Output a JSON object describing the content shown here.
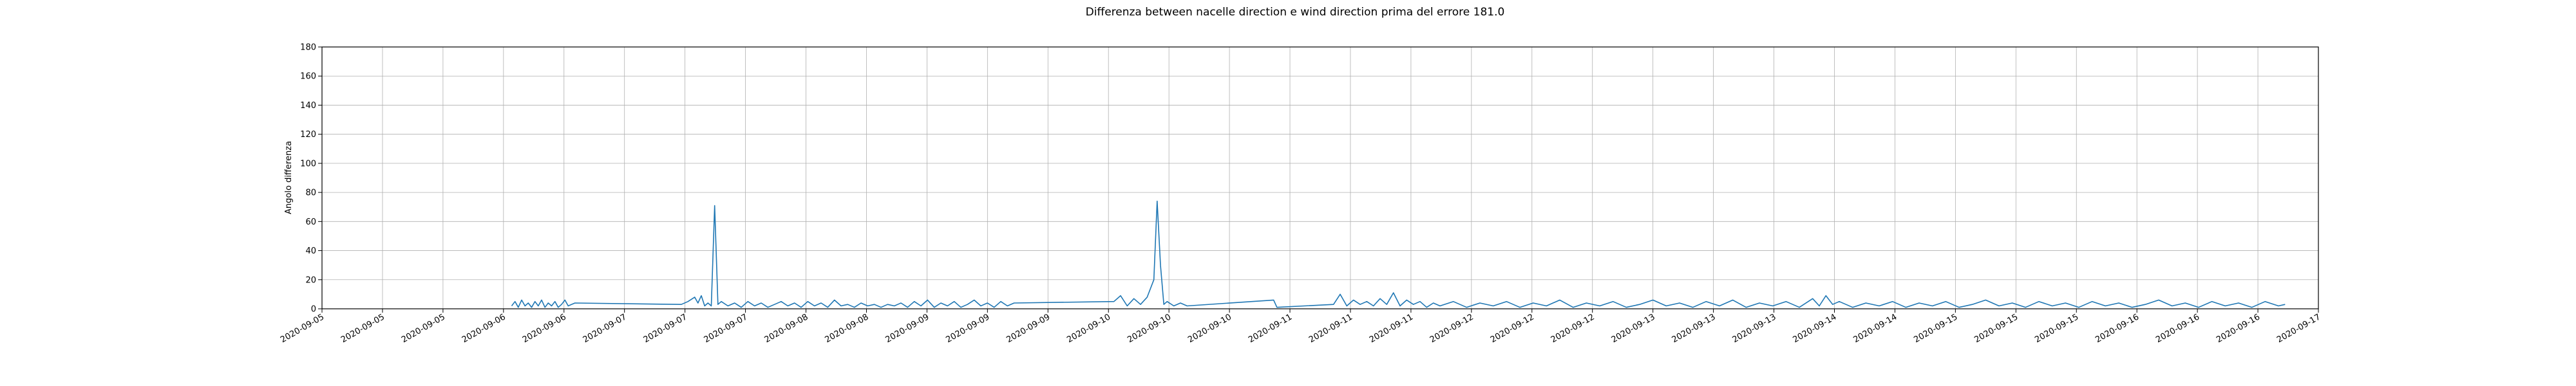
{
  "chart_data": {
    "type": "line",
    "title": "Differenza between nacelle direction e wind direction prima del errore 181.0",
    "xlabel": "",
    "ylabel": "Angolo differenza",
    "ylim": [
      0,
      180
    ],
    "yticks": [
      0,
      20,
      40,
      60,
      80,
      100,
      120,
      140,
      160,
      180
    ],
    "xlim": [
      "2020-09-05 00:00",
      "2020-09-17 12:00"
    ],
    "xtick_labels": [
      "2020-09-05",
      "2020-09-05",
      "2020-09-05",
      "2020-09-06",
      "2020-09-06",
      "2020-09-07",
      "2020-09-07",
      "2020-09-07",
      "2020-09-08",
      "2020-09-08",
      "2020-09-09",
      "2020-09-09",
      "2020-09-09",
      "2020-09-10",
      "2020-09-10",
      "2020-09-10",
      "2020-09-11",
      "2020-09-11",
      "2020-09-11",
      "2020-09-12",
      "2020-09-12",
      "2020-09-12",
      "2020-09-13",
      "2020-09-13",
      "2020-09-13",
      "2020-09-14",
      "2020-09-14",
      "2020-09-15",
      "2020-09-15",
      "2020-09-15",
      "2020-09-16",
      "2020-09-16",
      "2020-09-16",
      "2020-09-17"
    ],
    "grid": true,
    "line_color": "#1f77b4",
    "series": [
      {
        "points": [
          [
            "2020-09-06 04:30",
            2
          ],
          [
            "2020-09-06 05:00",
            5
          ],
          [
            "2020-09-06 05:30",
            1
          ],
          [
            "2020-09-06 06:00",
            6
          ],
          [
            "2020-09-06 06:30",
            2
          ],
          [
            "2020-09-06 07:00",
            4
          ],
          [
            "2020-09-06 07:30",
            1
          ],
          [
            "2020-09-06 08:00",
            5
          ],
          [
            "2020-09-06 08:30",
            2
          ],
          [
            "2020-09-06 09:00",
            6
          ],
          [
            "2020-09-06 09:30",
            1
          ],
          [
            "2020-09-06 10:00",
            4
          ],
          [
            "2020-09-06 10:30",
            2
          ],
          [
            "2020-09-06 11:00",
            5
          ],
          [
            "2020-09-06 11:30",
            1
          ],
          [
            "2020-09-06 12:00",
            3
          ],
          [
            "2020-09-06 12:30",
            6
          ],
          [
            "2020-09-06 13:00",
            2
          ],
          [
            "2020-09-06 14:00",
            4
          ],
          [
            "2020-09-07 06:00",
            3
          ],
          [
            "2020-09-07 07:00",
            5
          ],
          [
            "2020-09-07 08:00",
            8
          ],
          [
            "2020-09-07 08:30",
            4
          ],
          [
            "2020-09-07 09:00",
            9
          ],
          [
            "2020-09-07 09:30",
            2
          ],
          [
            "2020-09-07 10:00",
            4
          ],
          [
            "2020-09-07 10:30",
            2
          ],
          [
            "2020-09-07 11:00",
            71
          ],
          [
            "2020-09-07 11:30",
            3
          ],
          [
            "2020-09-07 12:00",
            5
          ],
          [
            "2020-09-07 13:00",
            2
          ],
          [
            "2020-09-07 14:00",
            4
          ],
          [
            "2020-09-07 15:00",
            1
          ],
          [
            "2020-09-07 16:00",
            5
          ],
          [
            "2020-09-07 17:00",
            2
          ],
          [
            "2020-09-07 18:00",
            4
          ],
          [
            "2020-09-07 19:00",
            1
          ],
          [
            "2020-09-07 20:00",
            3
          ],
          [
            "2020-09-07 21:00",
            5
          ],
          [
            "2020-09-07 22:00",
            2
          ],
          [
            "2020-09-07 23:00",
            4
          ],
          [
            "2020-09-08 00:00",
            1
          ],
          [
            "2020-09-08 01:00",
            5
          ],
          [
            "2020-09-08 02:00",
            2
          ],
          [
            "2020-09-08 03:00",
            4
          ],
          [
            "2020-09-08 04:00",
            1
          ],
          [
            "2020-09-08 05:00",
            6
          ],
          [
            "2020-09-08 06:00",
            2
          ],
          [
            "2020-09-08 07:00",
            3
          ],
          [
            "2020-09-08 08:00",
            1
          ],
          [
            "2020-09-08 09:00",
            4
          ],
          [
            "2020-09-08 10:00",
            2
          ],
          [
            "2020-09-08 11:00",
            3
          ],
          [
            "2020-09-08 12:00",
            1
          ],
          [
            "2020-09-08 13:00",
            3
          ],
          [
            "2020-09-08 14:00",
            2
          ],
          [
            "2020-09-08 15:00",
            4
          ],
          [
            "2020-09-08 16:00",
            1
          ],
          [
            "2020-09-08 17:00",
            5
          ],
          [
            "2020-09-08 18:00",
            2
          ],
          [
            "2020-09-08 19:00",
            6
          ],
          [
            "2020-09-08 20:00",
            1
          ],
          [
            "2020-09-08 21:00",
            4
          ],
          [
            "2020-09-08 22:00",
            2
          ],
          [
            "2020-09-08 23:00",
            5
          ],
          [
            "2020-09-09 00:00",
            1
          ],
          [
            "2020-09-09 01:00",
            3
          ],
          [
            "2020-09-09 02:00",
            6
          ],
          [
            "2020-09-09 03:00",
            2
          ],
          [
            "2020-09-09 04:00",
            4
          ],
          [
            "2020-09-09 05:00",
            1
          ],
          [
            "2020-09-09 06:00",
            5
          ],
          [
            "2020-09-09 07:00",
            2
          ],
          [
            "2020-09-09 08:00",
            4
          ],
          [
            "2020-09-09 23:00",
            5
          ],
          [
            "2020-09-10 00:00",
            9
          ],
          [
            "2020-09-10 01:00",
            2
          ],
          [
            "2020-09-10 02:00",
            7
          ],
          [
            "2020-09-10 03:00",
            3
          ],
          [
            "2020-09-10 04:00",
            8
          ],
          [
            "2020-09-10 05:00",
            20
          ],
          [
            "2020-09-10 05:30",
            74
          ],
          [
            "2020-09-10 06:00",
            30
          ],
          [
            "2020-09-10 06:30",
            3
          ],
          [
            "2020-09-10 07:00",
            5
          ],
          [
            "2020-09-10 08:00",
            2
          ],
          [
            "2020-09-10 09:00",
            4
          ],
          [
            "2020-09-10 10:00",
            2
          ],
          [
            "2020-09-10 23:00",
            6
          ],
          [
            "2020-09-10 23:30",
            1
          ],
          [
            "2020-09-11 08:00",
            3
          ],
          [
            "2020-09-11 09:00",
            10
          ],
          [
            "2020-09-11 10:00",
            2
          ],
          [
            "2020-09-11 11:00",
            6
          ],
          [
            "2020-09-11 12:00",
            3
          ],
          [
            "2020-09-11 13:00",
            5
          ],
          [
            "2020-09-11 14:00",
            2
          ],
          [
            "2020-09-11 15:00",
            7
          ],
          [
            "2020-09-11 16:00",
            3
          ],
          [
            "2020-09-11 17:00",
            11
          ],
          [
            "2020-09-11 18:00",
            2
          ],
          [
            "2020-09-11 19:00",
            6
          ],
          [
            "2020-09-11 20:00",
            3
          ],
          [
            "2020-09-11 21:00",
            5
          ],
          [
            "2020-09-11 22:00",
            1
          ],
          [
            "2020-09-11 23:00",
            4
          ],
          [
            "2020-09-12 00:00",
            2
          ],
          [
            "2020-09-12 02:00",
            5
          ],
          [
            "2020-09-12 04:00",
            1
          ],
          [
            "2020-09-12 06:00",
            4
          ],
          [
            "2020-09-12 08:00",
            2
          ],
          [
            "2020-09-12 10:00",
            5
          ],
          [
            "2020-09-12 12:00",
            1
          ],
          [
            "2020-09-12 14:00",
            4
          ],
          [
            "2020-09-12 16:00",
            2
          ],
          [
            "2020-09-12 18:00",
            6
          ],
          [
            "2020-09-12 20:00",
            1
          ],
          [
            "2020-09-12 22:00",
            4
          ],
          [
            "2020-09-13 00:00",
            2
          ],
          [
            "2020-09-13 02:00",
            5
          ],
          [
            "2020-09-13 04:00",
            1
          ],
          [
            "2020-09-13 06:00",
            3
          ],
          [
            "2020-09-13 08:00",
            6
          ],
          [
            "2020-09-13 10:00",
            2
          ],
          [
            "2020-09-13 12:00",
            4
          ],
          [
            "2020-09-13 14:00",
            1
          ],
          [
            "2020-09-13 16:00",
            5
          ],
          [
            "2020-09-13 18:00",
            2
          ],
          [
            "2020-09-13 20:00",
            6
          ],
          [
            "2020-09-13 22:00",
            1
          ],
          [
            "2020-09-14 00:00",
            4
          ],
          [
            "2020-09-14 02:00",
            2
          ],
          [
            "2020-09-14 04:00",
            5
          ],
          [
            "2020-09-14 06:00",
            1
          ],
          [
            "2020-09-14 08:00",
            7
          ],
          [
            "2020-09-14 09:00",
            2
          ],
          [
            "2020-09-14 10:00",
            9
          ],
          [
            "2020-09-14 11:00",
            3
          ],
          [
            "2020-09-14 12:00",
            5
          ],
          [
            "2020-09-14 14:00",
            1
          ],
          [
            "2020-09-14 16:00",
            4
          ],
          [
            "2020-09-14 18:00",
            2
          ],
          [
            "2020-09-14 20:00",
            5
          ],
          [
            "2020-09-14 22:00",
            1
          ],
          [
            "2020-09-15 00:00",
            4
          ],
          [
            "2020-09-15 02:00",
            2
          ],
          [
            "2020-09-15 04:00",
            5
          ],
          [
            "2020-09-15 06:00",
            1
          ],
          [
            "2020-09-15 08:00",
            3
          ],
          [
            "2020-09-15 10:00",
            6
          ],
          [
            "2020-09-15 12:00",
            2
          ],
          [
            "2020-09-15 14:00",
            4
          ],
          [
            "2020-09-15 16:00",
            1
          ],
          [
            "2020-09-15 18:00",
            5
          ],
          [
            "2020-09-15 20:00",
            2
          ],
          [
            "2020-09-15 22:00",
            4
          ],
          [
            "2020-09-16 00:00",
            1
          ],
          [
            "2020-09-16 02:00",
            5
          ],
          [
            "2020-09-16 04:00",
            2
          ],
          [
            "2020-09-16 06:00",
            4
          ],
          [
            "2020-09-16 08:00",
            1
          ],
          [
            "2020-09-16 10:00",
            3
          ],
          [
            "2020-09-16 12:00",
            6
          ],
          [
            "2020-09-16 14:00",
            2
          ],
          [
            "2020-09-16 16:00",
            4
          ],
          [
            "2020-09-16 18:00",
            1
          ],
          [
            "2020-09-16 20:00",
            5
          ],
          [
            "2020-09-16 22:00",
            2
          ],
          [
            "2020-09-17 00:00",
            4
          ],
          [
            "2020-09-17 02:00",
            1
          ],
          [
            "2020-09-17 04:00",
            5
          ],
          [
            "2020-09-17 06:00",
            2
          ],
          [
            "2020-09-17 07:00",
            3
          ]
        ]
      }
    ]
  }
}
